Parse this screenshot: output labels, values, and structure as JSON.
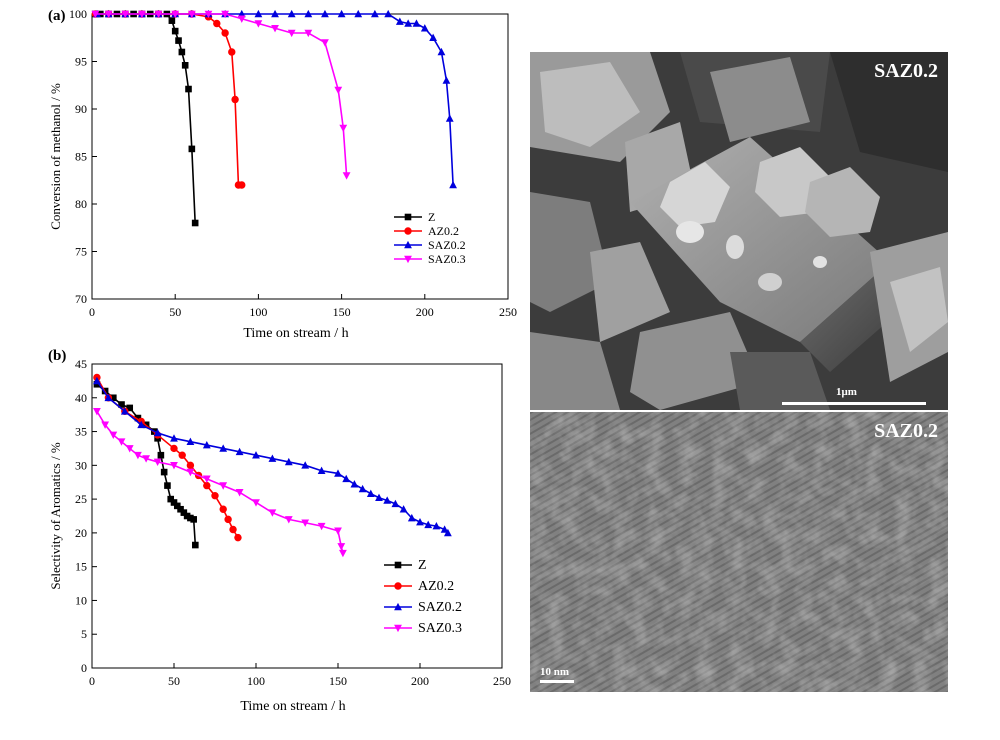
{
  "chart_data": [
    {
      "type": "line",
      "panel_label": "(a)",
      "xlabel": "Time on stream / h",
      "ylabel": "Conversion of methanol / %",
      "xlim": [
        0,
        250
      ],
      "ylim": [
        70,
        100
      ],
      "xticks": [
        0,
        50,
        100,
        150,
        200,
        250
      ],
      "yticks": [
        70,
        75,
        80,
        85,
        90,
        95,
        100
      ],
      "legend": "center-right",
      "series": [
        {
          "name": "Z",
          "color": "#000000",
          "marker": "square",
          "x": [
            2,
            5,
            10,
            15,
            20,
            25,
            30,
            35,
            40,
            45,
            48,
            50,
            52,
            54,
            56,
            58,
            60,
            62
          ],
          "y": [
            100,
            100,
            100,
            100,
            100,
            100,
            100,
            100,
            100,
            100,
            99.3,
            98.2,
            97.2,
            96,
            94.6,
            92.1,
            85.8,
            78
          ]
        },
        {
          "name": "AZ0.2",
          "color": "#ff0000",
          "marker": "circle",
          "x": [
            2,
            10,
            20,
            30,
            40,
            50,
            60,
            70,
            75,
            80,
            84,
            86,
            88,
            90
          ],
          "y": [
            100,
            100,
            100,
            100,
            100,
            100,
            100,
            99.7,
            99,
            98,
            96,
            91,
            82,
            82
          ]
        },
        {
          "name": "SAZ0.2",
          "color": "#0000dd",
          "marker": "triangle-up",
          "x": [
            3,
            10,
            20,
            30,
            40,
            50,
            60,
            70,
            80,
            90,
            100,
            110,
            120,
            130,
            140,
            150,
            160,
            170,
            178,
            185,
            190,
            195,
            200,
            205,
            210,
            213,
            215,
            217
          ],
          "y": [
            100,
            100,
            100,
            100,
            100,
            100,
            100,
            100,
            100,
            100,
            100,
            100,
            100,
            100,
            100,
            100,
            100,
            100,
            100,
            99.2,
            99,
            99,
            98.5,
            97.5,
            96,
            93,
            89,
            82
          ]
        },
        {
          "name": "SAZ0.3",
          "color": "#ff00ff",
          "marker": "triangle-down",
          "x": [
            2,
            10,
            20,
            30,
            40,
            50,
            60,
            70,
            80,
            90,
            100,
            110,
            120,
            130,
            140,
            148,
            151,
            153
          ],
          "y": [
            100,
            100,
            100,
            100,
            100,
            100,
            100,
            100,
            100,
            99.5,
            99,
            98.5,
            98,
            98,
            97,
            92,
            88,
            83
          ]
        }
      ]
    },
    {
      "type": "line",
      "panel_label": "(b)",
      "xlabel": "Time on stream / h",
      "ylabel": "Selectivity of Aromatics / %",
      "xlim": [
        0,
        250
      ],
      "ylim": [
        0,
        45
      ],
      "xticks": [
        0,
        50,
        100,
        150,
        200,
        250
      ],
      "yticks": [
        0,
        5,
        10,
        15,
        20,
        25,
        30,
        35,
        40,
        45
      ],
      "legend": "lower-right",
      "series": [
        {
          "name": "Z",
          "color": "#000000",
          "marker": "square",
          "x": [
            3,
            8,
            13,
            18,
            23,
            28,
            33,
            38,
            40,
            42,
            44,
            46,
            48,
            50,
            52,
            54,
            56,
            58,
            60,
            62,
            63
          ],
          "y": [
            42,
            41,
            40,
            39,
            38.5,
            37,
            36,
            35,
            34,
            31.5,
            29,
            27,
            25,
            24.5,
            24,
            23.5,
            23,
            22.5,
            22.2,
            22,
            18.2
          ]
        },
        {
          "name": "AZ0.2",
          "color": "#ff0000",
          "marker": "circle",
          "x": [
            3,
            10,
            20,
            30,
            40,
            50,
            55,
            60,
            65,
            70,
            75,
            80,
            83,
            86,
            89
          ],
          "y": [
            43,
            40,
            38,
            36.5,
            34.5,
            32.5,
            31.5,
            30,
            28.5,
            27,
            25.5,
            23.5,
            22,
            20.5,
            19.3
          ]
        },
        {
          "name": "SAZ0.2",
          "color": "#0000dd",
          "marker": "triangle-up",
          "x": [
            3,
            10,
            20,
            30,
            40,
            50,
            60,
            70,
            80,
            90,
            100,
            110,
            120,
            130,
            140,
            150,
            155,
            160,
            165,
            170,
            175,
            180,
            185,
            190,
            195,
            200,
            205,
            210,
            215,
            217
          ],
          "y": [
            42.5,
            40,
            38,
            36,
            34.8,
            34,
            33.5,
            33,
            32.5,
            32,
            31.5,
            31,
            30.5,
            30,
            29.2,
            28.8,
            28,
            27.2,
            26.5,
            25.8,
            25.2,
            24.8,
            24.3,
            23.5,
            22.2,
            21.6,
            21.2,
            21,
            20.5,
            20
          ]
        },
        {
          "name": "SAZ0.3",
          "color": "#ff00ff",
          "marker": "triangle-down",
          "x": [
            3,
            8,
            13,
            18,
            23,
            28,
            33,
            40,
            50,
            60,
            70,
            80,
            90,
            100,
            110,
            120,
            130,
            140,
            150,
            152,
            153
          ],
          "y": [
            38,
            36,
            34.5,
            33.5,
            32.5,
            31.5,
            31,
            30.5,
            30,
            29,
            28,
            27,
            26,
            24.5,
            23,
            22,
            21.5,
            21,
            20.3,
            18,
            17
          ]
        }
      ]
    }
  ],
  "micrographs": {
    "sem": {
      "label": "SAZ0.2",
      "scale": "1μm"
    },
    "tem": {
      "label": "SAZ0.2",
      "scale": "10 nm"
    }
  }
}
